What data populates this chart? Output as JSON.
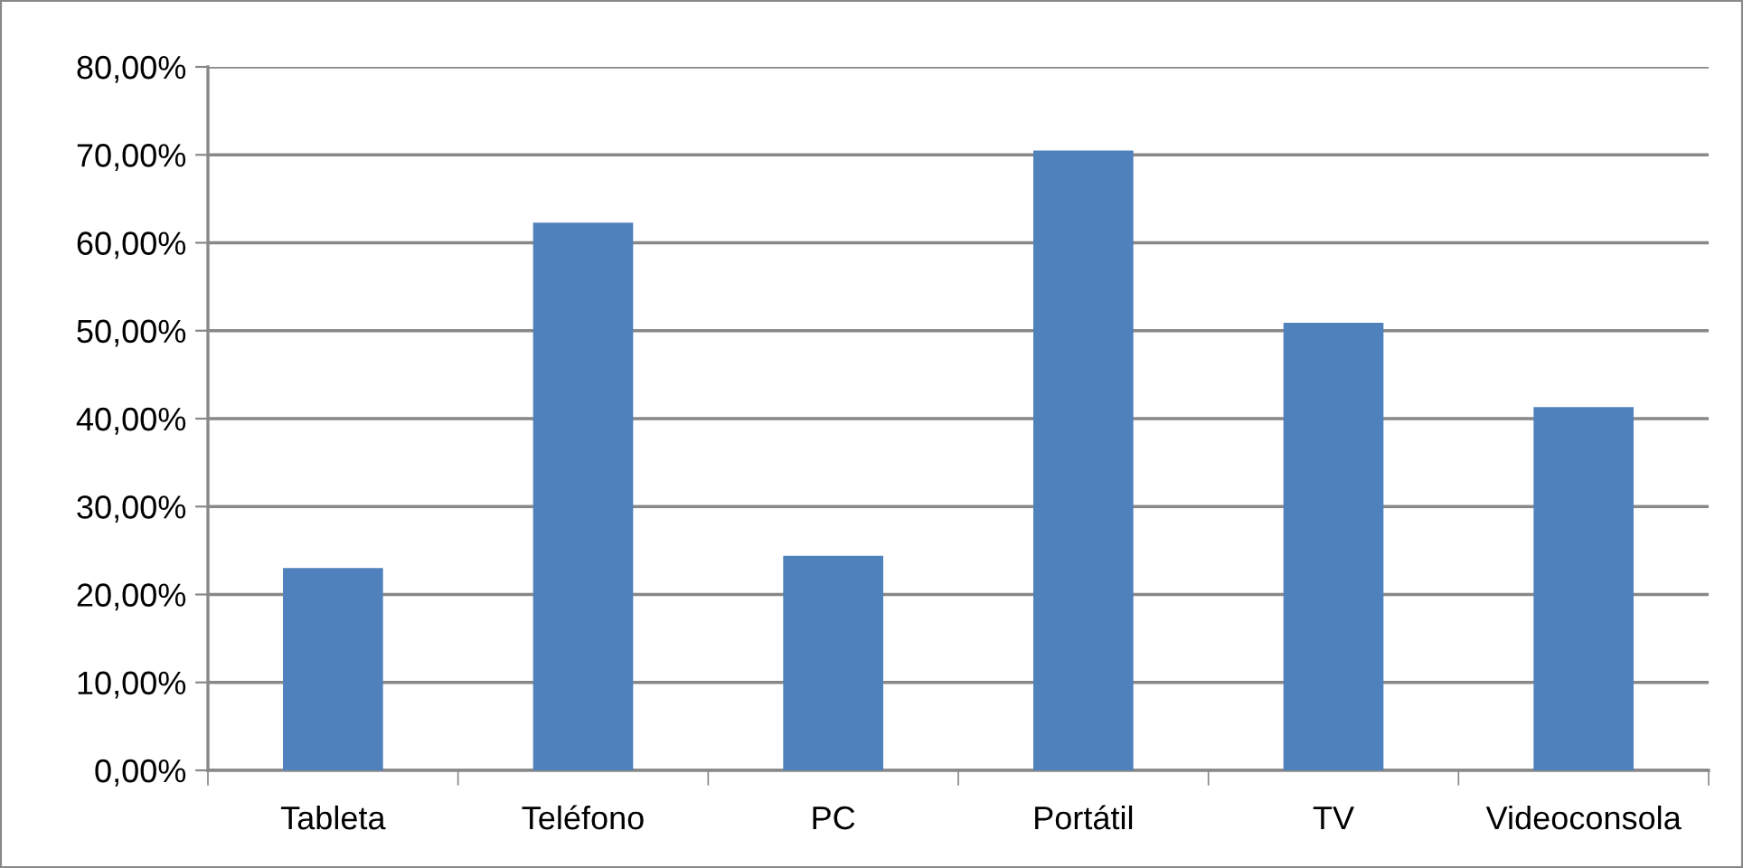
{
  "chart_data": {
    "type": "bar",
    "categories": [
      "Tableta",
      "Teléfono",
      "PC",
      "Portátil",
      "TV",
      "Videoconsola"
    ],
    "values": [
      23.0,
      62.3,
      24.4,
      70.5,
      50.9,
      41.3
    ],
    "color": "#4f81bd",
    "ylim": [
      0,
      80
    ],
    "yticks": [
      {
        "value": 0,
        "label": "0,00%"
      },
      {
        "value": 10,
        "label": "10,00%"
      },
      {
        "value": 20,
        "label": "20,00%"
      },
      {
        "value": 30,
        "label": "30,00%"
      },
      {
        "value": 40,
        "label": "40,00%"
      },
      {
        "value": 50,
        "label": "50,00%"
      },
      {
        "value": 60,
        "label": "60,00%"
      },
      {
        "value": 70,
        "label": "70,00%"
      },
      {
        "value": 80,
        "label": "80,00%"
      }
    ],
    "grid": "y",
    "legend": false
  }
}
